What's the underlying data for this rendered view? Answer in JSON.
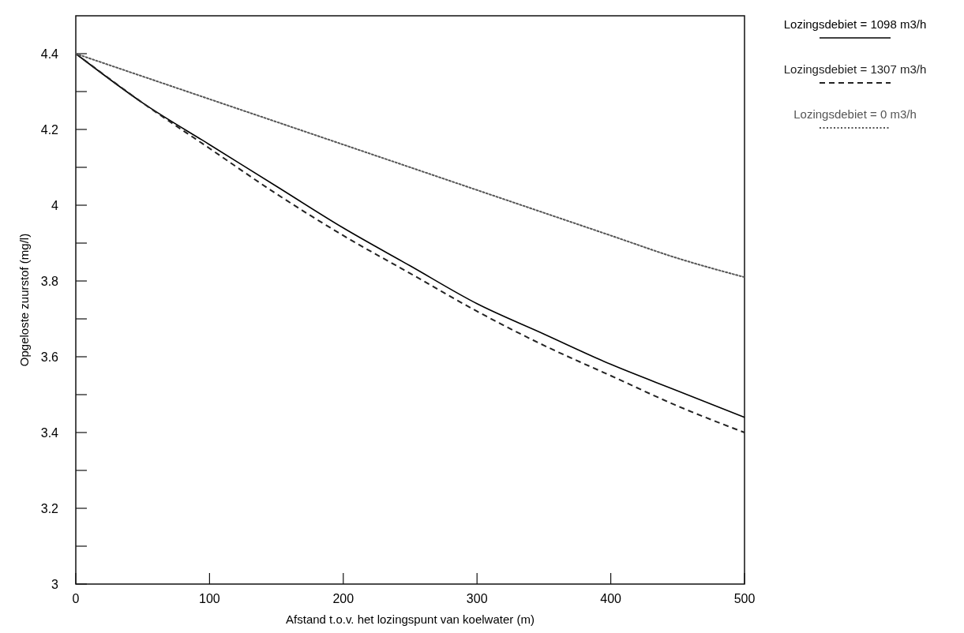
{
  "chart_data": {
    "type": "line",
    "xlabel": "Afstand t.o.v. het lozingspunt van koelwater (m)",
    "ylabel": "Opgeloste zuurstof (mg/l)",
    "x": [
      0,
      50,
      100,
      150,
      200,
      250,
      300,
      350,
      400,
      450,
      500
    ],
    "series": [
      {
        "name": "Lozingsdebiet = 1098 m3/h",
        "color": "#000000",
        "line_style": "solid",
        "values": [
          4.4,
          4.27,
          4.16,
          4.05,
          3.94,
          3.84,
          3.74,
          3.66,
          3.58,
          3.51,
          3.44
        ]
      },
      {
        "name": "Lozingsdebiet = 1307 m3/h",
        "color": "#222222",
        "line_style": "dashed",
        "values": [
          4.4,
          4.27,
          4.15,
          4.03,
          3.92,
          3.82,
          3.72,
          3.63,
          3.55,
          3.47,
          3.4
        ]
      },
      {
        "name": "Lozingsdebiet = 0 m3/h",
        "color": "#555555",
        "line_style": "dotted",
        "values": [
          4.4,
          4.34,
          4.28,
          4.22,
          4.16,
          4.1,
          4.04,
          3.98,
          3.92,
          3.86,
          3.81
        ]
      }
    ],
    "xlim": [
      0,
      500
    ],
    "xticks": [
      0,
      100,
      200,
      300,
      400,
      500
    ],
    "ylim": [
      3,
      4.5
    ],
    "yticks": [
      3,
      {
        "value": 3.1,
        "label": null
      },
      3.2,
      {
        "value": 3.3,
        "label": null
      },
      3.4,
      {
        "value": 3.5,
        "label": null
      },
      3.6,
      {
        "value": 3.7,
        "label": null
      },
      3.8,
      {
        "value": 3.9,
        "label": null
      },
      4,
      {
        "value": 4.1,
        "label": null
      },
      4.2,
      {
        "value": 4.3,
        "label": null
      },
      4.4
    ],
    "grid": false,
    "legend": "top right",
    "marker": "none"
  }
}
